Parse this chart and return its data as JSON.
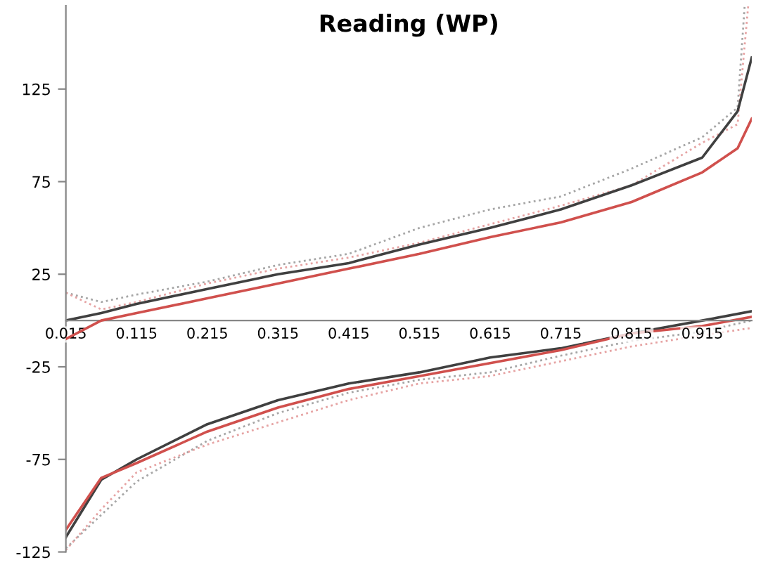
{
  "chart_data": {
    "type": "line",
    "title": "Reading (WP)",
    "xlim": [
      0.015,
      0.985
    ],
    "xticks": [
      0.015,
      0.115,
      0.215,
      0.315,
      0.415,
      0.515,
      0.615,
      0.715,
      0.815,
      0.915
    ],
    "ylim": [
      -125,
      170
    ],
    "yticks": [
      -125,
      -75,
      -25,
      25,
      75,
      125
    ],
    "grid": false,
    "marker": "none",
    "series": [
      {
        "color": "#a6a6a6",
        "line_style": "dotted",
        "x": [
          0.015,
          0.065,
          0.115,
          0.215,
          0.315,
          0.415,
          0.515,
          0.615,
          0.715,
          0.815,
          0.915,
          0.965,
          0.975
        ],
        "values": [
          15,
          10,
          14,
          21,
          30,
          36,
          50,
          60,
          67,
          82,
          99,
          115,
          170
        ]
      },
      {
        "color": "#e6a3a3",
        "line_style": "dotted",
        "x": [
          0.015,
          0.065,
          0.115,
          0.215,
          0.315,
          0.415,
          0.515,
          0.615,
          0.715,
          0.815,
          0.915,
          0.965,
          0.98
        ],
        "values": [
          15,
          6,
          10,
          20,
          28,
          34,
          42,
          52,
          62,
          73,
          96,
          106,
          170
        ]
      },
      {
        "color": "#404040",
        "line_style": "solid",
        "x": [
          0.015,
          0.065,
          0.115,
          0.215,
          0.315,
          0.415,
          0.515,
          0.615,
          0.715,
          0.815,
          0.915,
          0.965,
          0.985
        ],
        "values": [
          0,
          4,
          9,
          17,
          25,
          31,
          41,
          50,
          60,
          73,
          88,
          113,
          142
        ]
      },
      {
        "color": "#d0504d",
        "line_style": "solid",
        "x": [
          0.015,
          0.065,
          0.115,
          0.215,
          0.315,
          0.415,
          0.515,
          0.615,
          0.715,
          0.815,
          0.915,
          0.965,
          0.985
        ],
        "values": [
          -10,
          0,
          4,
          12,
          20,
          28,
          36,
          45,
          53,
          64,
          80,
          93,
          109
        ]
      },
      {
        "color": "#a6a6a6",
        "line_style": "dotted",
        "x": [
          0.015,
          0.065,
          0.115,
          0.215,
          0.315,
          0.415,
          0.515,
          0.615,
          0.715,
          0.815,
          0.915,
          0.985
        ],
        "values": [
          -123,
          -105,
          -87,
          -65,
          -50,
          -39,
          -32,
          -28,
          -19,
          -11,
          -6,
          0
        ]
      },
      {
        "color": "#e6a3a3",
        "line_style": "dotted",
        "x": [
          0.015,
          0.065,
          0.115,
          0.215,
          0.315,
          0.415,
          0.515,
          0.615,
          0.715,
          0.815,
          0.915,
          0.985
        ],
        "values": [
          -124,
          -102,
          -82,
          -67,
          -55,
          -43,
          -34,
          -30,
          -22,
          -14,
          -8,
          -4
        ]
      },
      {
        "color": "#404040",
        "line_style": "solid",
        "x": [
          0.015,
          0.065,
          0.115,
          0.215,
          0.315,
          0.415,
          0.515,
          0.615,
          0.715,
          0.815,
          0.915,
          0.985
        ],
        "values": [
          -117,
          -86,
          -75,
          -56,
          -43,
          -34,
          -28,
          -20,
          -15,
          -7,
          0,
          5
        ]
      },
      {
        "color": "#d0504d",
        "line_style": "solid",
        "x": [
          0.015,
          0.065,
          0.115,
          0.215,
          0.315,
          0.415,
          0.515,
          0.615,
          0.715,
          0.815,
          0.915,
          0.985
        ],
        "values": [
          -113,
          -85,
          -77,
          -60,
          -47,
          -37,
          -30,
          -23,
          -16,
          -7,
          -3,
          2
        ]
      }
    ]
  }
}
